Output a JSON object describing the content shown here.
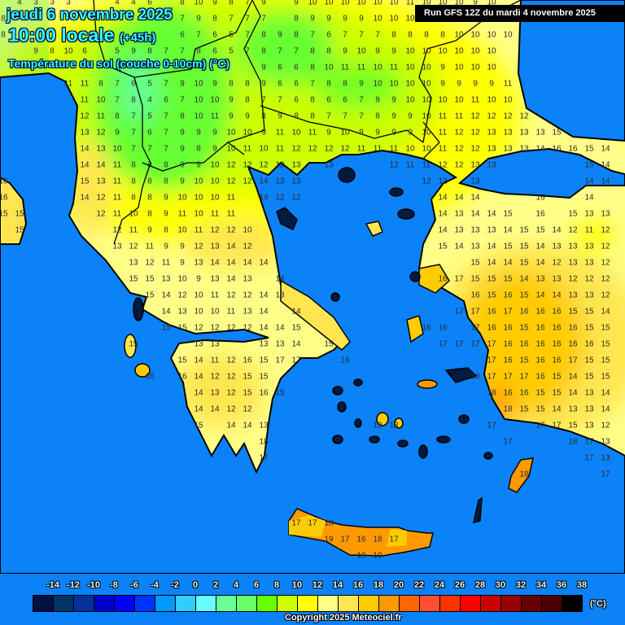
{
  "header": {
    "date": "jeudi 6 novembre 2025",
    "time": "10:00 locale",
    "lead": "(+45h)",
    "parameter": "Température du sol (couche 0-10cm) (°C)",
    "run": "Run GFS 12Z du mardi 4 novembre 2025"
  },
  "colors": {
    "sea": "#0b82f8",
    "island_no_data": "#001a40",
    "text": "#33ffff"
  },
  "map": {
    "grid_values": [
      [
        null,
        4,
        3,
        3,
        3,
        null,
        null,
        4,
        4,
        6,
        null,
        8,
        10,
        9,
        8,
        7,
        9,
        null,
        9,
        10,
        10,
        10,
        10,
        10,
        10,
        11,
        10,
        10,
        10,
        9,
        10,
        null,
        null,
        null,
        null,
        null,
        null,
        null
      ],
      [
        8,
        null,
        null,
        null,
        null,
        null,
        null,
        null,
        null,
        null,
        null,
        7,
        9,
        8,
        7,
        7,
        7,
        null,
        8,
        9,
        9,
        9,
        9,
        10,
        10,
        10,
        null,
        null,
        null,
        null,
        null,
        null,
        null,
        null,
        null,
        null,
        null,
        null
      ],
      [
        8,
        null,
        null,
        null,
        null,
        null,
        null,
        null,
        null,
        null,
        null,
        6,
        7,
        6,
        5,
        7,
        8,
        9,
        8,
        7,
        6,
        7,
        7,
        7,
        8,
        8,
        8,
        8,
        10,
        10,
        10,
        10,
        null,
        null,
        null,
        null,
        null,
        null
      ],
      [
        null,
        null,
        9,
        8,
        10,
        6,
        null,
        5,
        9,
        8,
        7,
        7,
        8,
        6,
        5,
        7,
        8,
        7,
        7,
        8,
        8,
        9,
        10,
        9,
        9,
        10,
        10,
        10,
        10,
        10,
        10,
        null,
        null,
        null,
        null,
        null,
        null,
        null
      ],
      [
        null,
        null,
        null,
        null,
        null,
        null,
        null,
        null,
        null,
        null,
        null,
        null,
        null,
        null,
        null,
        null,
        9,
        6,
        6,
        8,
        10,
        11,
        11,
        10,
        11,
        10,
        10,
        9,
        10,
        10,
        10,
        null,
        null,
        null,
        null,
        null,
        null,
        null
      ],
      [
        null,
        null,
        null,
        null,
        11,
        11,
        8,
        7,
        6,
        5,
        7,
        9,
        10,
        9,
        8,
        8,
        9,
        6,
        6,
        7,
        8,
        8,
        9,
        10,
        10,
        10,
        10,
        9,
        9,
        9,
        9,
        11,
        null,
        null,
        null,
        null,
        null,
        null
      ],
      [
        null,
        null,
        null,
        null,
        null,
        11,
        10,
        7,
        8,
        4,
        6,
        7,
        10,
        10,
        9,
        8,
        7,
        7,
        6,
        8,
        6,
        6,
        7,
        9,
        9,
        10,
        10,
        10,
        10,
        11,
        10,
        10,
        null,
        null,
        null,
        null,
        null,
        null
      ],
      [
        null,
        null,
        null,
        null,
        null,
        12,
        11,
        8,
        7,
        5,
        7,
        8,
        10,
        11,
        9,
        9,
        8,
        9,
        8,
        8,
        7,
        7,
        7,
        8,
        9,
        9,
        10,
        11,
        11,
        12,
        12,
        12,
        12,
        null,
        null,
        null,
        null,
        null
      ],
      [
        null,
        null,
        null,
        null,
        null,
        13,
        12,
        9,
        7,
        6,
        7,
        9,
        9,
        9,
        10,
        10,
        9,
        11,
        10,
        11,
        9,
        10,
        9,
        9,
        9,
        9,
        10,
        11,
        12,
        12,
        13,
        13,
        13,
        13,
        15,
        null,
        null,
        null
      ],
      [
        null,
        null,
        null,
        null,
        null,
        14,
        13,
        10,
        7,
        7,
        7,
        9,
        8,
        9,
        10,
        11,
        10,
        11,
        12,
        12,
        12,
        12,
        11,
        11,
        11,
        10,
        10,
        11,
        12,
        12,
        13,
        13,
        13,
        14,
        16,
        16,
        15,
        14
      ],
      [
        null,
        null,
        null,
        null,
        null,
        14,
        14,
        11,
        8,
        9,
        8,
        9,
        9,
        10,
        12,
        12,
        12,
        12,
        13,
        null,
        13,
        null,
        null,
        null,
        12,
        11,
        11,
        12,
        12,
        13,
        13,
        null,
        null,
        null,
        null,
        null,
        15,
        14
      ],
      [
        16,
        null,
        null,
        null,
        null,
        15,
        13,
        11,
        8,
        8,
        8,
        9,
        10,
        10,
        12,
        12,
        14,
        13,
        13,
        null,
        null,
        null,
        null,
        null,
        null,
        null,
        12,
        12,
        null,
        13,
        null,
        null,
        null,
        null,
        null,
        null,
        14,
        14
      ],
      [
        16,
        null,
        null,
        null,
        null,
        14,
        12,
        11,
        8,
        8,
        9,
        10,
        10,
        10,
        11,
        null,
        14,
        12,
        12,
        null,
        null,
        null,
        null,
        null,
        null,
        null,
        null,
        14,
        14,
        14,
        null,
        null,
        null,
        16,
        null,
        null,
        14,
        null
      ],
      [
        15,
        15,
        null,
        null,
        null,
        null,
        12,
        11,
        10,
        8,
        9,
        11,
        10,
        11,
        11,
        null,
        null,
        null,
        null,
        null,
        null,
        null,
        null,
        null,
        null,
        null,
        null,
        14,
        13,
        14,
        14,
        15,
        null,
        16,
        null,
        15,
        13,
        13
      ],
      [
        null,
        15,
        null,
        null,
        null,
        null,
        null,
        12,
        11,
        9,
        8,
        10,
        11,
        12,
        12,
        10,
        null,
        null,
        null,
        null,
        null,
        null,
        null,
        null,
        null,
        null,
        null,
        14,
        13,
        13,
        13,
        14,
        15,
        15,
        14,
        12,
        11,
        12
      ],
      [
        null,
        null,
        null,
        null,
        null,
        null,
        null,
        13,
        12,
        11,
        9,
        9,
        12,
        13,
        14,
        12,
        null,
        null,
        null,
        null,
        null,
        null,
        null,
        null,
        null,
        null,
        null,
        15,
        14,
        13,
        14,
        15,
        15,
        14,
        13,
        13,
        13,
        12
      ],
      [
        null,
        null,
        null,
        null,
        null,
        null,
        null,
        null,
        13,
        12,
        11,
        9,
        13,
        14,
        14,
        14,
        14,
        null,
        null,
        null,
        null,
        null,
        null,
        null,
        null,
        null,
        null,
        null,
        null,
        15,
        14,
        14,
        15,
        14,
        12,
        13,
        13,
        12
      ],
      [
        null,
        null,
        null,
        null,
        null,
        null,
        null,
        null,
        15,
        15,
        13,
        10,
        9,
        13,
        14,
        13,
        null,
        14,
        null,
        null,
        null,
        null,
        null,
        null,
        null,
        null,
        null,
        16,
        17,
        15,
        15,
        15,
        14,
        13,
        13,
        12,
        12,
        12
      ],
      [
        null,
        null,
        null,
        null,
        null,
        null,
        null,
        null,
        null,
        15,
        14,
        12,
        10,
        11,
        12,
        12,
        14,
        13,
        null,
        null,
        null,
        null,
        null,
        null,
        null,
        null,
        null,
        null,
        null,
        16,
        15,
        16,
        15,
        14,
        14,
        13,
        13,
        12
      ],
      [
        null,
        null,
        null,
        null,
        null,
        null,
        null,
        null,
        null,
        null,
        14,
        13,
        10,
        10,
        11,
        13,
        14,
        null,
        14,
        null,
        null,
        null,
        null,
        null,
        null,
        null,
        null,
        null,
        17,
        17,
        16,
        17,
        16,
        16,
        16,
        15,
        15,
        14
      ],
      [
        null,
        null,
        null,
        null,
        null,
        null,
        null,
        null,
        null,
        null,
        15,
        15,
        12,
        12,
        12,
        12,
        14,
        14,
        15,
        null,
        null,
        null,
        null,
        null,
        null,
        null,
        16,
        16,
        null,
        17,
        16,
        16,
        15,
        16,
        16,
        16,
        15,
        15
      ],
      [
        null,
        null,
        null,
        null,
        null,
        null,
        null,
        null,
        15,
        null,
        null,
        null,
        13,
        13,
        null,
        null,
        13,
        13,
        14,
        null,
        15,
        null,
        null,
        null,
        null,
        null,
        null,
        17,
        17,
        17,
        17,
        16,
        16,
        16,
        16,
        16,
        16,
        15
      ],
      [
        null,
        null,
        null,
        null,
        null,
        null,
        null,
        null,
        null,
        null,
        null,
        15,
        14,
        11,
        12,
        16,
        15,
        17,
        17,
        null,
        null,
        16,
        null,
        null,
        null,
        null,
        null,
        null,
        null,
        null,
        17,
        16,
        15,
        16,
        16,
        17,
        15,
        15
      ],
      [
        null,
        null,
        null,
        null,
        null,
        null,
        null,
        null,
        null,
        16,
        null,
        16,
        14,
        12,
        12,
        15,
        15,
        null,
        null,
        null,
        null,
        null,
        null,
        null,
        null,
        null,
        null,
        null,
        null,
        18,
        17,
        17,
        17,
        16,
        15,
        14,
        15,
        15
      ],
      [
        null,
        null,
        null,
        null,
        null,
        null,
        null,
        null,
        null,
        null,
        null,
        null,
        14,
        13,
        12,
        15,
        16,
        15,
        null,
        null,
        null,
        null,
        null,
        null,
        null,
        null,
        null,
        null,
        null,
        null,
        18,
        16,
        16,
        15,
        15,
        14,
        13,
        14
      ],
      [
        null,
        null,
        null,
        null,
        null,
        null,
        null,
        null,
        null,
        null,
        null,
        null,
        14,
        14,
        12,
        12,
        null,
        null,
        null,
        null,
        null,
        null,
        null,
        null,
        null,
        null,
        null,
        null,
        null,
        null,
        null,
        18,
        15,
        15,
        14,
        13,
        13,
        14
      ],
      [
        null,
        null,
        null,
        null,
        null,
        null,
        null,
        null,
        null,
        null,
        null,
        null,
        15,
        null,
        14,
        14,
        13,
        null,
        null,
        null,
        null,
        null,
        null,
        19,
        18,
        null,
        null,
        null,
        null,
        null,
        17,
        null,
        null,
        17,
        17,
        15,
        13,
        12
      ],
      [
        null,
        null,
        null,
        null,
        null,
        null,
        null,
        null,
        null,
        null,
        null,
        null,
        null,
        null,
        null,
        null,
        18,
        null,
        null,
        null,
        null,
        null,
        null,
        null,
        null,
        null,
        null,
        null,
        null,
        null,
        null,
        17,
        null,
        null,
        null,
        18,
        17,
        13
      ],
      [
        null,
        null,
        null,
        null,
        null,
        null,
        null,
        null,
        null,
        null,
        null,
        null,
        null,
        null,
        null,
        null,
        17,
        null,
        null,
        null,
        null,
        null,
        null,
        null,
        null,
        null,
        null,
        null,
        null,
        null,
        null,
        null,
        null,
        null,
        null,
        null,
        17,
        13
      ],
      [
        null,
        null,
        null,
        null,
        null,
        null,
        null,
        null,
        null,
        null,
        null,
        null,
        null,
        null,
        null,
        null,
        null,
        null,
        null,
        null,
        null,
        null,
        null,
        null,
        null,
        null,
        null,
        null,
        null,
        null,
        null,
        null,
        18,
        null,
        null,
        null,
        null,
        17
      ],
      [],
      [],
      [
        null,
        null,
        null,
        null,
        null,
        null,
        null,
        null,
        null,
        null,
        null,
        null,
        null,
        null,
        null,
        null,
        null,
        null,
        17,
        17,
        18,
        null,
        null,
        null,
        null,
        null,
        null,
        null,
        null,
        null,
        null,
        null,
        null,
        null,
        null,
        null,
        null,
        null
      ],
      [
        null,
        null,
        null,
        null,
        null,
        null,
        null,
        null,
        null,
        null,
        null,
        null,
        null,
        null,
        null,
        null,
        null,
        null,
        null,
        null,
        19,
        17,
        16,
        18,
        17,
        null,
        null,
        null,
        null,
        null,
        null,
        null,
        null,
        null,
        null,
        null,
        null,
        null
      ],
      [
        null,
        null,
        null,
        null,
        null,
        null,
        null,
        null,
        null,
        null,
        null,
        null,
        null,
        null,
        null,
        null,
        null,
        null,
        null,
        null,
        null,
        null,
        19,
        19,
        null,
        null,
        null,
        null,
        null,
        null,
        null,
        null,
        null,
        null,
        null,
        null,
        null,
        null
      ]
    ]
  },
  "legend": {
    "labels": [
      "-14",
      "-12",
      "-10",
      "-8",
      "-6",
      "-4",
      "-2",
      "0",
      "2",
      "4",
      "6",
      "8",
      "10",
      "12",
      "14",
      "16",
      "18",
      "20",
      "22",
      "24",
      "26",
      "28",
      "30",
      "32",
      "34",
      "36",
      "38"
    ],
    "swatches": [
      "#001040",
      "#003366",
      "#003399",
      "#0000cc",
      "#0000ff",
      "#0033ff",
      "#0099ff",
      "#33ccff",
      "#66ffff",
      "#66ff99",
      "#66ff66",
      "#66ff00",
      "#ccff00",
      "#ffff00",
      "#ffff88",
      "#ffe650",
      "#ffcc00",
      "#ff9900",
      "#ff6600",
      "#ff5033",
      "#ff3300",
      "#ff0000",
      "#cc0000",
      "#990000",
      "#660000",
      "#4d0000",
      "#000000"
    ],
    "unit": "(°C)"
  },
  "footer": {
    "copyright": "Copyright 2025 Meteociel.fr"
  }
}
